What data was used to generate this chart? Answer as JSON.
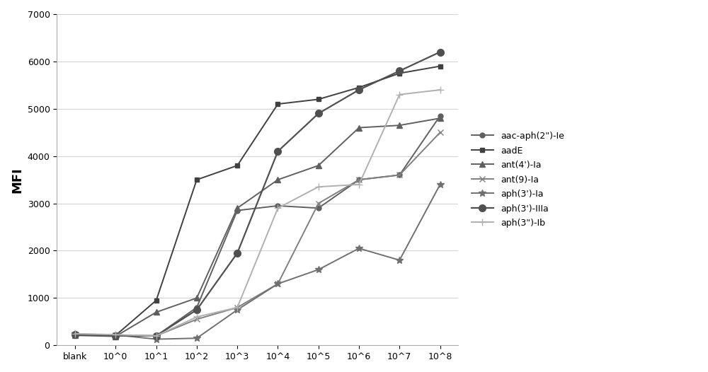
{
  "x_labels": [
    "blank",
    "10^0",
    "10^1",
    "10^2",
    "10^3",
    "10^4",
    "10^5",
    "10^6",
    "10^7",
    "10^8"
  ],
  "series": [
    {
      "name": "aac-aph(2\")-Ie",
      "color": "#606060",
      "marker": "o",
      "marker_size": 5,
      "linewidth": 1.4,
      "values": [
        220,
        200,
        200,
        800,
        2850,
        2950,
        2900,
        3500,
        3600,
        4850
      ]
    },
    {
      "name": "aadE",
      "color": "#404040",
      "marker": "s",
      "marker_size": 5,
      "linewidth": 1.4,
      "values": [
        230,
        210,
        950,
        3500,
        3800,
        5100,
        5200,
        5450,
        5750,
        5900
      ]
    },
    {
      "name": "ant(4')-Ia",
      "color": "#606060",
      "marker": "^",
      "marker_size": 6,
      "linewidth": 1.4,
      "values": [
        210,
        190,
        700,
        1000,
        2900,
        3500,
        3800,
        4600,
        4650,
        4800
      ]
    },
    {
      "name": "ant(9)-Ia",
      "color": "#808080",
      "marker": "x",
      "marker_size": 6,
      "linewidth": 1.4,
      "values": [
        230,
        210,
        200,
        550,
        800,
        1300,
        3000,
        3500,
        3600,
        4500
      ]
    },
    {
      "name": "aph(3')-Ia",
      "color": "#707070",
      "marker": "*",
      "marker_size": 7,
      "linewidth": 1.4,
      "values": [
        240,
        220,
        130,
        150,
        750,
        1300,
        1600,
        2050,
        1800,
        3400
      ]
    },
    {
      "name": "aph(3')-IIIa",
      "color": "#505050",
      "marker": "o",
      "marker_size": 7,
      "linewidth": 1.6,
      "values": [
        225,
        205,
        200,
        750,
        1950,
        4100,
        4900,
        5400,
        5800,
        6200
      ]
    },
    {
      "name": "aph(3\")-Ib",
      "color": "#b0b0b0",
      "marker": "+",
      "marker_size": 7,
      "linewidth": 1.4,
      "values": [
        245,
        225,
        200,
        600,
        800,
        2900,
        3350,
        3400,
        5300,
        5400
      ]
    }
  ],
  "ylabel": "MFI",
  "ylim": [
    0,
    7000
  ],
  "yticks": [
    0,
    1000,
    2000,
    3000,
    4000,
    5000,
    6000,
    7000
  ],
  "background_color": "#ffffff",
  "grid_color": "#d0d0d0",
  "figsize": [
    10.0,
    5.26
  ],
  "dpi": 100
}
